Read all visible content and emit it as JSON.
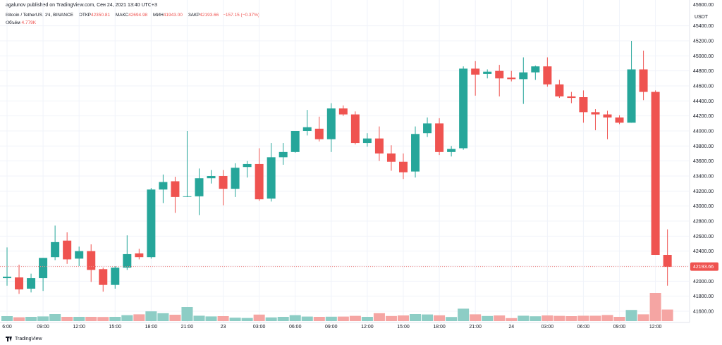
{
  "header": {
    "attribution": "agalunov published on TradingView.com, Сен 24, 2021 13:40 UTC+3",
    "symbol": "Bitcoin / TetherUS, 1Ч, BINANCE",
    "open_label": "ОТКР",
    "open_value": "42350.81",
    "high_label": "МАКС",
    "high_value": "42694.98",
    "low_label": "МИН",
    "low_value": "41943.00",
    "close_label": "ЗАКР",
    "close_value": "42193.66",
    "change_value": "−157.15 (−0.37%)",
    "volume_label": "Объём",
    "volume_value": "4.779K"
  },
  "footer": {
    "brand": "TradingView",
    "logo_icon": "tradingview-logo-icon"
  },
  "colors": {
    "up": "#26a69a",
    "down": "#ef5350",
    "vol_up": "#8dcdc5",
    "vol_down": "#f5a5a3",
    "price_line": "#f28b87"
  },
  "chart_data": {
    "type": "candlestick",
    "quote_currency": "USDT",
    "y_axis_top_label": "45600.00",
    "y_axis": {
      "ylim": [
        41450,
        45650
      ],
      "ticks": [
        41600,
        41800,
        42000,
        42200,
        42400,
        42600,
        42800,
        43000,
        43200,
        43400,
        43600,
        43800,
        44000,
        44200,
        44400,
        44600,
        44800,
        45000,
        45200,
        45400
      ]
    },
    "x_tick_labels": [
      {
        "label": "6:00",
        "index": 0
      },
      {
        "label": "09:00",
        "index": 3
      },
      {
        "label": "12:00",
        "index": 6
      },
      {
        "label": "15:00",
        "index": 9
      },
      {
        "label": "18:00",
        "index": 12
      },
      {
        "label": "21:00",
        "index": 15
      },
      {
        "label": "23",
        "index": 18
      },
      {
        "label": "03:00",
        "index": 21
      },
      {
        "label": "06:00",
        "index": 24
      },
      {
        "label": "09:00",
        "index": 27
      },
      {
        "label": "12:00",
        "index": 30
      },
      {
        "label": "15:00",
        "index": 33
      },
      {
        "label": "18:00",
        "index": 36
      },
      {
        "label": "21:00",
        "index": 39
      },
      {
        "label": "24",
        "index": 42
      },
      {
        "label": "03:00",
        "index": 45
      },
      {
        "label": "06:00",
        "index": 48
      },
      {
        "label": "09:00",
        "index": 51
      },
      {
        "label": "12:00",
        "index": 54
      }
    ],
    "last_price_label": "42193.66",
    "last_price": 42193.66,
    "candles": [
      {
        "o": 42040,
        "h": 42450,
        "l": 41940,
        "c": 42060
      },
      {
        "o": 42050,
        "h": 42220,
        "l": 41830,
        "c": 41890
      },
      {
        "o": 41900,
        "h": 42100,
        "l": 41850,
        "c": 42040
      },
      {
        "o": 42040,
        "h": 42310,
        "l": 41870,
        "c": 42310
      },
      {
        "o": 42320,
        "h": 42740,
        "l": 42280,
        "c": 42520
      },
      {
        "o": 42540,
        "h": 42650,
        "l": 42230,
        "c": 42290
      },
      {
        "o": 42300,
        "h": 42460,
        "l": 42200,
        "c": 42400
      },
      {
        "o": 42400,
        "h": 42490,
        "l": 41990,
        "c": 42150
      },
      {
        "o": 42160,
        "h": 42180,
        "l": 41860,
        "c": 41950
      },
      {
        "o": 41950,
        "h": 42200,
        "l": 41900,
        "c": 42180
      },
      {
        "o": 42180,
        "h": 42610,
        "l": 42150,
        "c": 42360
      },
      {
        "o": 42370,
        "h": 42430,
        "l": 42290,
        "c": 42320
      },
      {
        "o": 42320,
        "h": 43240,
        "l": 42300,
        "c": 43220
      },
      {
        "o": 43220,
        "h": 43420,
        "l": 43040,
        "c": 43320
      },
      {
        "o": 43330,
        "h": 43390,
        "l": 42910,
        "c": 43120
      },
      {
        "o": 43130,
        "h": 44000,
        "l": 43120,
        "c": 43130
      },
      {
        "o": 43130,
        "h": 43500,
        "l": 42880,
        "c": 43370
      },
      {
        "o": 43370,
        "h": 43480,
        "l": 43300,
        "c": 43400
      },
      {
        "o": 43400,
        "h": 43480,
        "l": 43010,
        "c": 43230
      },
      {
        "o": 43230,
        "h": 43570,
        "l": 43120,
        "c": 43510
      },
      {
        "o": 43520,
        "h": 43600,
        "l": 43380,
        "c": 43560
      },
      {
        "o": 43560,
        "h": 43770,
        "l": 43070,
        "c": 43090
      },
      {
        "o": 43100,
        "h": 43840,
        "l": 43060,
        "c": 43650
      },
      {
        "o": 43650,
        "h": 43840,
        "l": 43550,
        "c": 43720
      },
      {
        "o": 43720,
        "h": 44000,
        "l": 43710,
        "c": 44000
      },
      {
        "o": 44000,
        "h": 44280,
        "l": 43940,
        "c": 44050
      },
      {
        "o": 44030,
        "h": 44190,
        "l": 43860,
        "c": 43890
      },
      {
        "o": 43890,
        "h": 44370,
        "l": 43720,
        "c": 44300
      },
      {
        "o": 44300,
        "h": 44340,
        "l": 44200,
        "c": 44220
      },
      {
        "o": 44220,
        "h": 44260,
        "l": 43820,
        "c": 43840
      },
      {
        "o": 43840,
        "h": 43970,
        "l": 43790,
        "c": 43900
      },
      {
        "o": 43900,
        "h": 44060,
        "l": 43600,
        "c": 43700
      },
      {
        "o": 43700,
        "h": 43810,
        "l": 43470,
        "c": 43590
      },
      {
        "o": 43590,
        "h": 43700,
        "l": 43360,
        "c": 43450
      },
      {
        "o": 43460,
        "h": 44060,
        "l": 43380,
        "c": 43960
      },
      {
        "o": 43970,
        "h": 44180,
        "l": 43920,
        "c": 44100
      },
      {
        "o": 44100,
        "h": 44170,
        "l": 43680,
        "c": 43720
      },
      {
        "o": 43720,
        "h": 43800,
        "l": 43660,
        "c": 43760
      },
      {
        "o": 43770,
        "h": 44860,
        "l": 43750,
        "c": 44830
      },
      {
        "o": 44830,
        "h": 44930,
        "l": 44470,
        "c": 44750
      },
      {
        "o": 44760,
        "h": 44820,
        "l": 44700,
        "c": 44790
      },
      {
        "o": 44800,
        "h": 44880,
        "l": 44460,
        "c": 44700
      },
      {
        "o": 44710,
        "h": 44800,
        "l": 44660,
        "c": 44690
      },
      {
        "o": 44690,
        "h": 44980,
        "l": 44360,
        "c": 44780
      },
      {
        "o": 44780,
        "h": 44870,
        "l": 44680,
        "c": 44860
      },
      {
        "o": 44860,
        "h": 44980,
        "l": 44590,
        "c": 44620
      },
      {
        "o": 44620,
        "h": 44680,
        "l": 44440,
        "c": 44460
      },
      {
        "o": 44460,
        "h": 44520,
        "l": 44370,
        "c": 44440
      },
      {
        "o": 44450,
        "h": 44540,
        "l": 44110,
        "c": 44250
      },
      {
        "o": 44250,
        "h": 44290,
        "l": 44010,
        "c": 44220
      },
      {
        "o": 44220,
        "h": 44270,
        "l": 43890,
        "c": 44180
      },
      {
        "o": 44180,
        "h": 44210,
        "l": 44090,
        "c": 44110
      },
      {
        "o": 44110,
        "h": 45200,
        "l": 44110,
        "c": 44820
      },
      {
        "o": 44820,
        "h": 45070,
        "l": 44410,
        "c": 44520
      },
      {
        "o": 44520,
        "h": 44540,
        "l": 42350,
        "c": 42350
      },
      {
        "o": 42350,
        "h": 42690,
        "l": 41940,
        "c": 42190
      }
    ],
    "volume_relative": [
      0.35,
      0.27,
      0.3,
      0.33,
      0.5,
      0.3,
      0.3,
      0.3,
      0.29,
      0.3,
      0.42,
      0.48,
      0.69,
      0.56,
      0.45,
      1.0,
      0.38,
      0.33,
      0.35,
      0.24,
      0.22,
      0.46,
      0.26,
      0.3,
      0.42,
      0.32,
      0.3,
      0.31,
      0.32,
      0.37,
      0.3,
      0.56,
      0.36,
      0.4,
      0.5,
      0.47,
      0.41,
      0.29,
      0.88,
      0.48,
      0.36,
      0.4,
      0.21,
      0.38,
      0.34,
      0.4,
      0.37,
      0.35,
      0.38,
      0.38,
      0.43,
      0.3,
      0.79,
      0.48,
      2.0,
      0.82
    ]
  }
}
